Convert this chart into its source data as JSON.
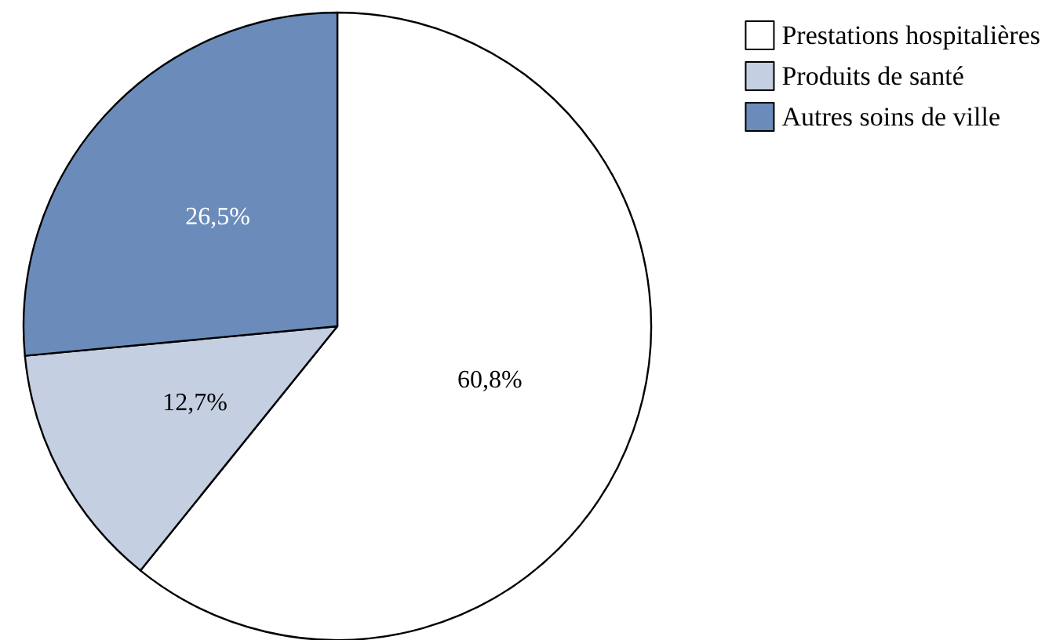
{
  "chart_data": {
    "type": "pie",
    "categories": [
      "Prestations hospitalières",
      "Produits de santé",
      "Autres soins de ville"
    ],
    "values": [
      60.8,
      12.7,
      26.5
    ],
    "colors": [
      "#ffffff",
      "#c5cfe2",
      "#6b8cba"
    ],
    "value_labels": [
      "60,8%",
      "12,7%",
      "26,5%"
    ],
    "legend": "top right"
  }
}
